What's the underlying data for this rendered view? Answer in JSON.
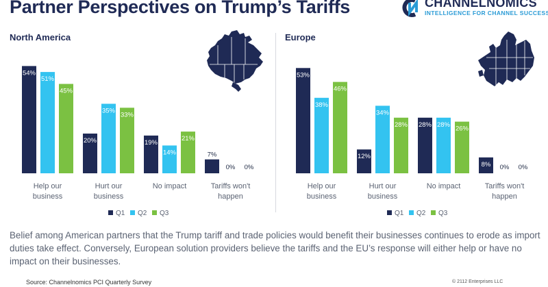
{
  "header": {
    "title": "Partner Perspectives on Trump’s Tariffs",
    "brand": "CHANNELNOMICS",
    "tagline": "INTELLIGENCE FOR CHANNEL SUCCESS"
  },
  "colors": {
    "q1": "#1f2a55",
    "q2": "#33c3f0",
    "q3": "#7bc142",
    "title": "#1f2a55"
  },
  "chart_data": [
    {
      "type": "bar",
      "title": "North America",
      "categories": [
        "Help our business",
        "Hurt our business",
        "No impact",
        "Tariffs won't happen"
      ],
      "series": [
        {
          "name": "Q1",
          "values": [
            54,
            20,
            19,
            7
          ]
        },
        {
          "name": "Q2",
          "values": [
            51,
            35,
            14,
            0
          ]
        },
        {
          "name": "Q3",
          "values": [
            45,
            33,
            21,
            0
          ]
        }
      ],
      "ylim": [
        0,
        60
      ],
      "legend": "bottom"
    },
    {
      "type": "bar",
      "title": "Europe",
      "categories": [
        "Help our business",
        "Hurt our business",
        "No impact",
        "Tariffs won't happen"
      ],
      "series": [
        {
          "name": "Q1",
          "values": [
            53,
            12,
            28,
            8
          ]
        },
        {
          "name": "Q2",
          "values": [
            38,
            34,
            28,
            0
          ]
        },
        {
          "name": "Q3",
          "values": [
            46,
            28,
            26,
            0
          ]
        }
      ],
      "ylim": [
        0,
        60
      ],
      "legend": "bottom"
    }
  ],
  "description": "Belief among American partners that the Trump tariff and trade policies would benefit their businesses continues to erode as import duties take effect. Conversely, European solution providers believe the tariffs and the EU’s response will either help or have no impact on their businesses.",
  "source": "Source: Channelnomics PCI Quarterly Survey",
  "copyright": "© 2112 Enterprises LLC"
}
